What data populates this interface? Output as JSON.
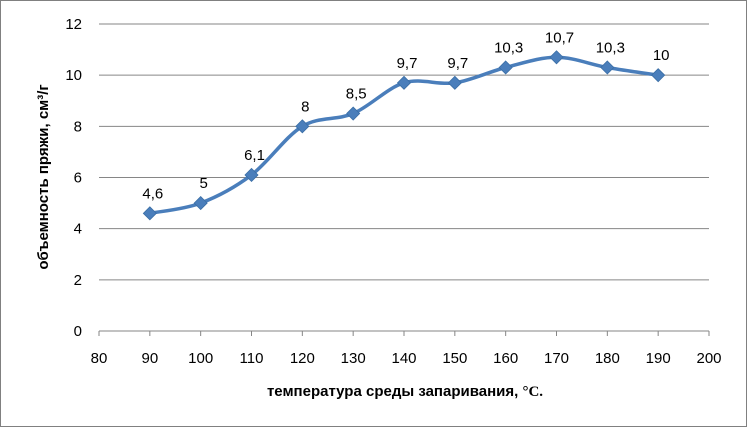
{
  "chart_data": {
    "type": "line",
    "title": "",
    "xlabel": "температура среды запаривания, °C.",
    "xlabel_parts": {
      "text": "температура среды запаривания, ",
      "unit": "°C."
    },
    "ylabel": "объемность пряжи, см³/г",
    "xlim": [
      80,
      200
    ],
    "ylim": [
      0,
      12
    ],
    "x_ticks": [
      "80",
      "90",
      "100",
      "110",
      "120",
      "130",
      "140",
      "150",
      "160",
      "170",
      "180",
      "190",
      "200"
    ],
    "y_ticks": [
      "0",
      "2",
      "4",
      "6",
      "8",
      "10",
      "12"
    ],
    "grid": "horizontal",
    "legend": "none",
    "series": [
      {
        "x": [
          90,
          100,
          110,
          120,
          130,
          140,
          150,
          160,
          170,
          180,
          190
        ],
        "y": [
          4.6,
          5,
          6.1,
          8,
          8.5,
          9.7,
          9.7,
          10.3,
          10.7,
          10.3,
          10
        ],
        "labels": [
          "4,6",
          "5",
          "6,1",
          "8",
          "8,5",
          "9,7",
          "9,7",
          "10,3",
          "10,7",
          "10,3",
          "10"
        ],
        "color": "#4a7ebb",
        "marker": "diamond",
        "smooth": true
      }
    ]
  }
}
